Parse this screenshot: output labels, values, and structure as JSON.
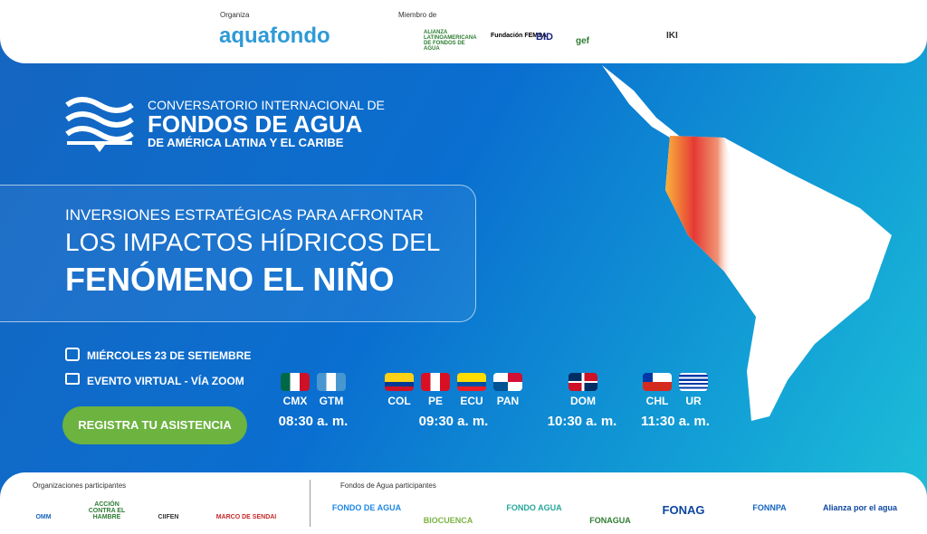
{
  "header": {
    "organiza_label": "Organiza",
    "brand": "aquafondo",
    "member_label": "Miembro de",
    "members": [
      "ALIANZA LATINOAMERICANA DE FONDOS DE AGUA",
      "Fundación FEMSA",
      "BID",
      "gef",
      "IKI"
    ]
  },
  "event_title": {
    "line1": "CONVERSATORIO INTERNACIONAL DE",
    "line2": "FONDOS DE AGUA",
    "line3": "DE AMÉRICA LATINA Y EL CARIBE"
  },
  "headline": {
    "line1": "INVERSIONES ESTRATÉGICAS PARA AFRONTAR",
    "line2": "LOS IMPACTOS HÍDRICOS DEL",
    "line3": "FENÓMENO EL NIÑO"
  },
  "details": {
    "date": "MIÉRCOLES 23 DE SETIEMBRE",
    "venue": "EVENTO VIRTUAL - VÍA ZOOM"
  },
  "register_button": "REGISTRA TU ASISTENCIA",
  "schedule": [
    {
      "countries": [
        "CMX",
        "GTM"
      ],
      "time": "08:30 a. m."
    },
    {
      "countries": [
        "COL",
        "PE",
        "ECU",
        "PAN"
      ],
      "time": "09:30 a. m."
    },
    {
      "countries": [
        "DOM"
      ],
      "time": "10:30 a. m."
    },
    {
      "countries": [
        "CHL",
        "UR"
      ],
      "time": "11:30 a. m."
    }
  ],
  "footer": {
    "orgs_label": "Organizaciones participantes",
    "orgs": [
      "OMM",
      "ACCIÓN CONTRA EL HAMBRE",
      "CIIFEN",
      "MARCO DE SENDAI"
    ],
    "funds_label": "Fondos de Agua participantes",
    "funds": [
      "FONDO DE AGUA",
      "BIOCUENCA",
      "FONDO AGUA",
      "FONAGUA",
      "FONAG",
      "FONNPA",
      "Alianza por el agua"
    ]
  }
}
